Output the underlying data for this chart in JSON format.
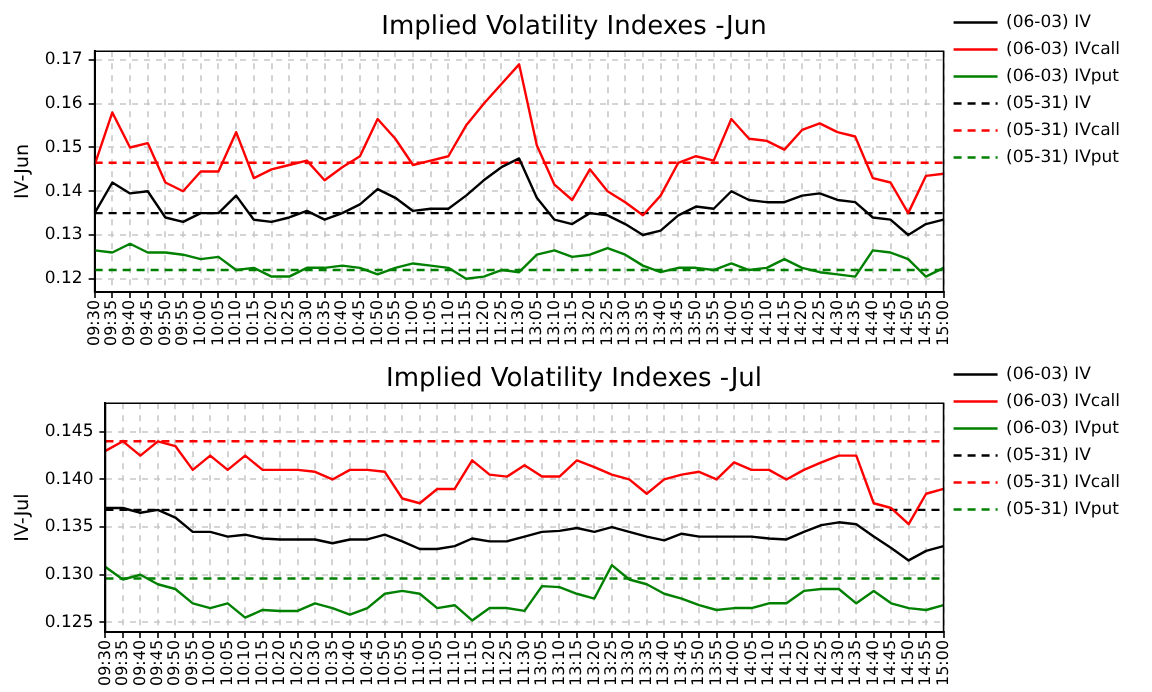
{
  "chart_data": [
    {
      "type": "line",
      "title": "Implied Volatility Indexes -Jun",
      "ylabel": "IV-Jun",
      "legend": "right",
      "grid": true,
      "marker": "none",
      "categories": [
        "09:30",
        "09:35",
        "09:40",
        "09:45",
        "09:50",
        "09:55",
        "10:00",
        "10:05",
        "10:10",
        "10:15",
        "10:20",
        "10:25",
        "10:30",
        "10:35",
        "10:40",
        "10:45",
        "10:50",
        "10:55",
        "11:00",
        "11:05",
        "11:10",
        "11:15",
        "11:20",
        "11:25",
        "11:30",
        "13:05",
        "13:10",
        "13:15",
        "13:20",
        "13:25",
        "13:30",
        "13:35",
        "13:40",
        "13:45",
        "13:50",
        "13:55",
        "14:00",
        "14:05",
        "14:10",
        "14:15",
        "14:20",
        "14:25",
        "14:30",
        "14:35",
        "14:40",
        "14:45",
        "14:50",
        "14:55",
        "15:00"
      ],
      "ylim": [
        0.117,
        0.172
      ],
      "yticks": [
        0.12,
        0.13,
        0.14,
        0.15,
        0.16,
        0.17
      ],
      "series": [
        {
          "name": "(06-03) IV",
          "color": "#000000",
          "line_style": "solid",
          "values": [
            0.135,
            0.142,
            0.1395,
            0.14,
            0.134,
            0.133,
            0.135,
            0.135,
            0.139,
            0.1335,
            0.133,
            0.134,
            0.1355,
            0.1335,
            0.135,
            0.137,
            0.1405,
            0.1385,
            0.1355,
            0.136,
            0.136,
            0.139,
            0.1425,
            0.1455,
            0.1475,
            0.1385,
            0.1335,
            0.1325,
            0.135,
            0.1345,
            0.1325,
            0.13,
            0.131,
            0.1345,
            0.1365,
            0.136,
            0.14,
            0.138,
            0.1375,
            0.1375,
            0.139,
            0.1395,
            0.138,
            0.1375,
            0.134,
            0.1335,
            0.13,
            0.1325,
            0.1335
          ]
        },
        {
          "name": "(06-03) IVcall",
          "color": "#ff0000",
          "line_style": "solid",
          "values": [
            0.146,
            0.158,
            0.15,
            0.151,
            0.142,
            0.14,
            0.1445,
            0.1445,
            0.1535,
            0.143,
            0.145,
            0.146,
            0.147,
            0.1425,
            0.1455,
            0.148,
            0.1565,
            0.152,
            0.146,
            0.147,
            0.148,
            0.155,
            0.16,
            0.1645,
            0.169,
            0.1505,
            0.1415,
            0.138,
            0.145,
            0.14,
            0.1375,
            0.1345,
            0.139,
            0.1465,
            0.148,
            0.147,
            0.1565,
            0.152,
            0.1515,
            0.1495,
            0.154,
            0.1555,
            0.1535,
            0.1525,
            0.143,
            0.142,
            0.135,
            0.1435,
            0.144
          ]
        },
        {
          "name": "(06-03) IVput",
          "color": "#008000",
          "line_style": "solid",
          "values": [
            0.1265,
            0.126,
            0.128,
            0.126,
            0.126,
            0.1255,
            0.1245,
            0.125,
            0.122,
            0.1225,
            0.1205,
            0.1205,
            0.1225,
            0.1225,
            0.123,
            0.1225,
            0.121,
            0.1225,
            0.1235,
            0.123,
            0.1225,
            0.12,
            0.1205,
            0.122,
            0.1215,
            0.1255,
            0.1265,
            0.125,
            0.1255,
            0.127,
            0.1255,
            0.123,
            0.1215,
            0.1225,
            0.1225,
            0.122,
            0.1235,
            0.122,
            0.1225,
            0.1245,
            0.1225,
            0.1215,
            0.121,
            0.1205,
            0.1265,
            0.126,
            0.1245,
            0.1205,
            0.1225
          ]
        },
        {
          "name": "(05-31) IV",
          "color": "#000000",
          "line_style": "dashed",
          "values": [
            0.135,
            0.135,
            0.135,
            0.135,
            0.135,
            0.135,
            0.135,
            0.135,
            0.135,
            0.135,
            0.135,
            0.135,
            0.135,
            0.135,
            0.135,
            0.135,
            0.135,
            0.135,
            0.135,
            0.135,
            0.135,
            0.135,
            0.135,
            0.135,
            0.135,
            0.135,
            0.135,
            0.135,
            0.135,
            0.135,
            0.135,
            0.135,
            0.135,
            0.135,
            0.135,
            0.135,
            0.135,
            0.135,
            0.135,
            0.135,
            0.135,
            0.135,
            0.135,
            0.135,
            0.135,
            0.135,
            0.135,
            0.135,
            0.135
          ]
        },
        {
          "name": "(05-31) IVcall",
          "color": "#ff0000",
          "line_style": "dashed",
          "values": [
            0.1465,
            0.1465,
            0.1465,
            0.1465,
            0.1465,
            0.1465,
            0.1465,
            0.1465,
            0.1465,
            0.1465,
            0.1465,
            0.1465,
            0.1465,
            0.1465,
            0.1465,
            0.1465,
            0.1465,
            0.1465,
            0.1465,
            0.1465,
            0.1465,
            0.1465,
            0.1465,
            0.1465,
            0.1465,
            0.1465,
            0.1465,
            0.1465,
            0.1465,
            0.1465,
            0.1465,
            0.1465,
            0.1465,
            0.1465,
            0.1465,
            0.1465,
            0.1465,
            0.1465,
            0.1465,
            0.1465,
            0.1465,
            0.1465,
            0.1465,
            0.1465,
            0.1465,
            0.1465,
            0.1465,
            0.1465,
            0.1465
          ]
        },
        {
          "name": "(05-31) IVput",
          "color": "#008000",
          "line_style": "dashed",
          "values": [
            0.122,
            0.122,
            0.122,
            0.122,
            0.122,
            0.122,
            0.122,
            0.122,
            0.122,
            0.122,
            0.122,
            0.122,
            0.122,
            0.122,
            0.122,
            0.122,
            0.122,
            0.122,
            0.122,
            0.122,
            0.122,
            0.122,
            0.122,
            0.122,
            0.122,
            0.122,
            0.122,
            0.122,
            0.122,
            0.122,
            0.122,
            0.122,
            0.122,
            0.122,
            0.122,
            0.122,
            0.122,
            0.122,
            0.122,
            0.122,
            0.122,
            0.122,
            0.122,
            0.122,
            0.122,
            0.122,
            0.122,
            0.122,
            0.122
          ]
        }
      ]
    },
    {
      "type": "line",
      "title": "Implied Volatility Indexes -Jul",
      "ylabel": "IV-Jul",
      "legend": "right",
      "grid": true,
      "marker": "none",
      "categories": [
        "09:30",
        "09:35",
        "09:40",
        "09:45",
        "09:50",
        "09:55",
        "10:00",
        "10:05",
        "10:10",
        "10:15",
        "10:20",
        "10:25",
        "10:30",
        "10:35",
        "10:40",
        "10:45",
        "10:50",
        "10:55",
        "11:00",
        "11:05",
        "11:10",
        "11:15",
        "11:20",
        "11:25",
        "11:30",
        "13:05",
        "13:10",
        "13:15",
        "13:20",
        "13:25",
        "13:30",
        "13:35",
        "13:40",
        "13:45",
        "13:50",
        "13:55",
        "14:00",
        "14:05",
        "14:10",
        "14:15",
        "14:20",
        "14:25",
        "14:30",
        "14:35",
        "14:40",
        "14:45",
        "14:50",
        "14:55",
        "15:00"
      ],
      "ylim": [
        0.124,
        0.148
      ],
      "yticks": [
        0.125,
        {
          "value": 0.13,
          "label": "0.130"
        },
        0.135,
        {
          "value": 0.14,
          "label": "0.140"
        },
        0.145
      ],
      "series": [
        {
          "name": "(06-03) IV",
          "color": "#000000",
          "line_style": "solid",
          "values": [
            0.137,
            0.137,
            0.1365,
            0.1368,
            0.136,
            0.1345,
            0.1345,
            0.134,
            0.1342,
            0.1338,
            0.1337,
            0.1337,
            0.1337,
            0.1333,
            0.1337,
            0.1337,
            0.1342,
            0.1335,
            0.1327,
            0.1327,
            0.133,
            0.1338,
            0.1335,
            0.1335,
            0.134,
            0.1345,
            0.1346,
            0.1349,
            0.1345,
            0.135,
            0.1345,
            0.134,
            0.1336,
            0.1343,
            0.134,
            0.134,
            0.134,
            0.134,
            0.1338,
            0.1337,
            0.1345,
            0.1352,
            0.1355,
            0.1353,
            0.134,
            0.1328,
            0.1315,
            0.1325,
            0.133
          ]
        },
        {
          "name": "(06-03) IVcall",
          "color": "#ff0000",
          "line_style": "solid",
          "values": [
            0.143,
            0.144,
            0.1425,
            0.144,
            0.1435,
            0.141,
            0.1425,
            0.141,
            0.1425,
            0.141,
            0.141,
            0.141,
            0.1408,
            0.14,
            0.141,
            0.141,
            0.1408,
            0.138,
            0.1375,
            0.139,
            0.139,
            0.142,
            0.1405,
            0.1403,
            0.1415,
            0.1403,
            0.1403,
            0.142,
            0.1413,
            0.1405,
            0.14,
            0.1385,
            0.14,
            0.1405,
            0.1408,
            0.14,
            0.1418,
            0.141,
            0.141,
            0.14,
            0.141,
            0.1418,
            0.1425,
            0.1425,
            0.1375,
            0.137,
            0.1353,
            0.1385,
            0.139
          ]
        },
        {
          "name": "(06-03) IVput",
          "color": "#008000",
          "line_style": "solid",
          "values": [
            0.1308,
            0.1295,
            0.13,
            0.129,
            0.1285,
            0.127,
            0.1265,
            0.127,
            0.1255,
            0.1263,
            0.1262,
            0.1262,
            0.127,
            0.1265,
            0.1258,
            0.1265,
            0.128,
            0.1283,
            0.128,
            0.1265,
            0.1268,
            0.1252,
            0.1265,
            0.1265,
            0.1262,
            0.1288,
            0.1287,
            0.128,
            0.1275,
            0.131,
            0.1295,
            0.129,
            0.128,
            0.1275,
            0.1268,
            0.1263,
            0.1265,
            0.1265,
            0.127,
            0.127,
            0.1283,
            0.1285,
            0.1285,
            0.127,
            0.1283,
            0.127,
            0.1265,
            0.1263,
            0.1268
          ]
        },
        {
          "name": "(05-31) IV",
          "color": "#000000",
          "line_style": "dashed",
          "values": [
            0.1368,
            0.1368,
            0.1368,
            0.1368,
            0.1368,
            0.1368,
            0.1368,
            0.1368,
            0.1368,
            0.1368,
            0.1368,
            0.1368,
            0.1368,
            0.1368,
            0.1368,
            0.1368,
            0.1368,
            0.1368,
            0.1368,
            0.1368,
            0.1368,
            0.1368,
            0.1368,
            0.1368,
            0.1368,
            0.1368,
            0.1368,
            0.1368,
            0.1368,
            0.1368,
            0.1368,
            0.1368,
            0.1368,
            0.1368,
            0.1368,
            0.1368,
            0.1368,
            0.1368,
            0.1368,
            0.1368,
            0.1368,
            0.1368,
            0.1368,
            0.1368,
            0.1368,
            0.1368,
            0.1368,
            0.1368,
            0.1368
          ]
        },
        {
          "name": "(05-31) IVcall",
          "color": "#ff0000",
          "line_style": "dashed",
          "values": [
            0.144,
            0.144,
            0.144,
            0.144,
            0.144,
            0.144,
            0.144,
            0.144,
            0.144,
            0.144,
            0.144,
            0.144,
            0.144,
            0.144,
            0.144,
            0.144,
            0.144,
            0.144,
            0.144,
            0.144,
            0.144,
            0.144,
            0.144,
            0.144,
            0.144,
            0.144,
            0.144,
            0.144,
            0.144,
            0.144,
            0.144,
            0.144,
            0.144,
            0.144,
            0.144,
            0.144,
            0.144,
            0.144,
            0.144,
            0.144,
            0.144,
            0.144,
            0.144,
            0.144,
            0.144,
            0.144,
            0.144,
            0.144,
            0.144
          ]
        },
        {
          "name": "(05-31) IVput",
          "color": "#008000",
          "line_style": "dashed",
          "values": [
            0.1296,
            0.1296,
            0.1296,
            0.1296,
            0.1296,
            0.1296,
            0.1296,
            0.1296,
            0.1296,
            0.1296,
            0.1296,
            0.1296,
            0.1296,
            0.1296,
            0.1296,
            0.1296,
            0.1296,
            0.1296,
            0.1296,
            0.1296,
            0.1296,
            0.1296,
            0.1296,
            0.1296,
            0.1296,
            0.1296,
            0.1296,
            0.1296,
            0.1296,
            0.1296,
            0.1296,
            0.1296,
            0.1296,
            0.1296,
            0.1296,
            0.1296,
            0.1296,
            0.1296,
            0.1296,
            0.1296,
            0.1296,
            0.1296,
            0.1296,
            0.1296,
            0.1296,
            0.1296,
            0.1296,
            0.1296,
            0.1296
          ]
        }
      ]
    }
  ]
}
